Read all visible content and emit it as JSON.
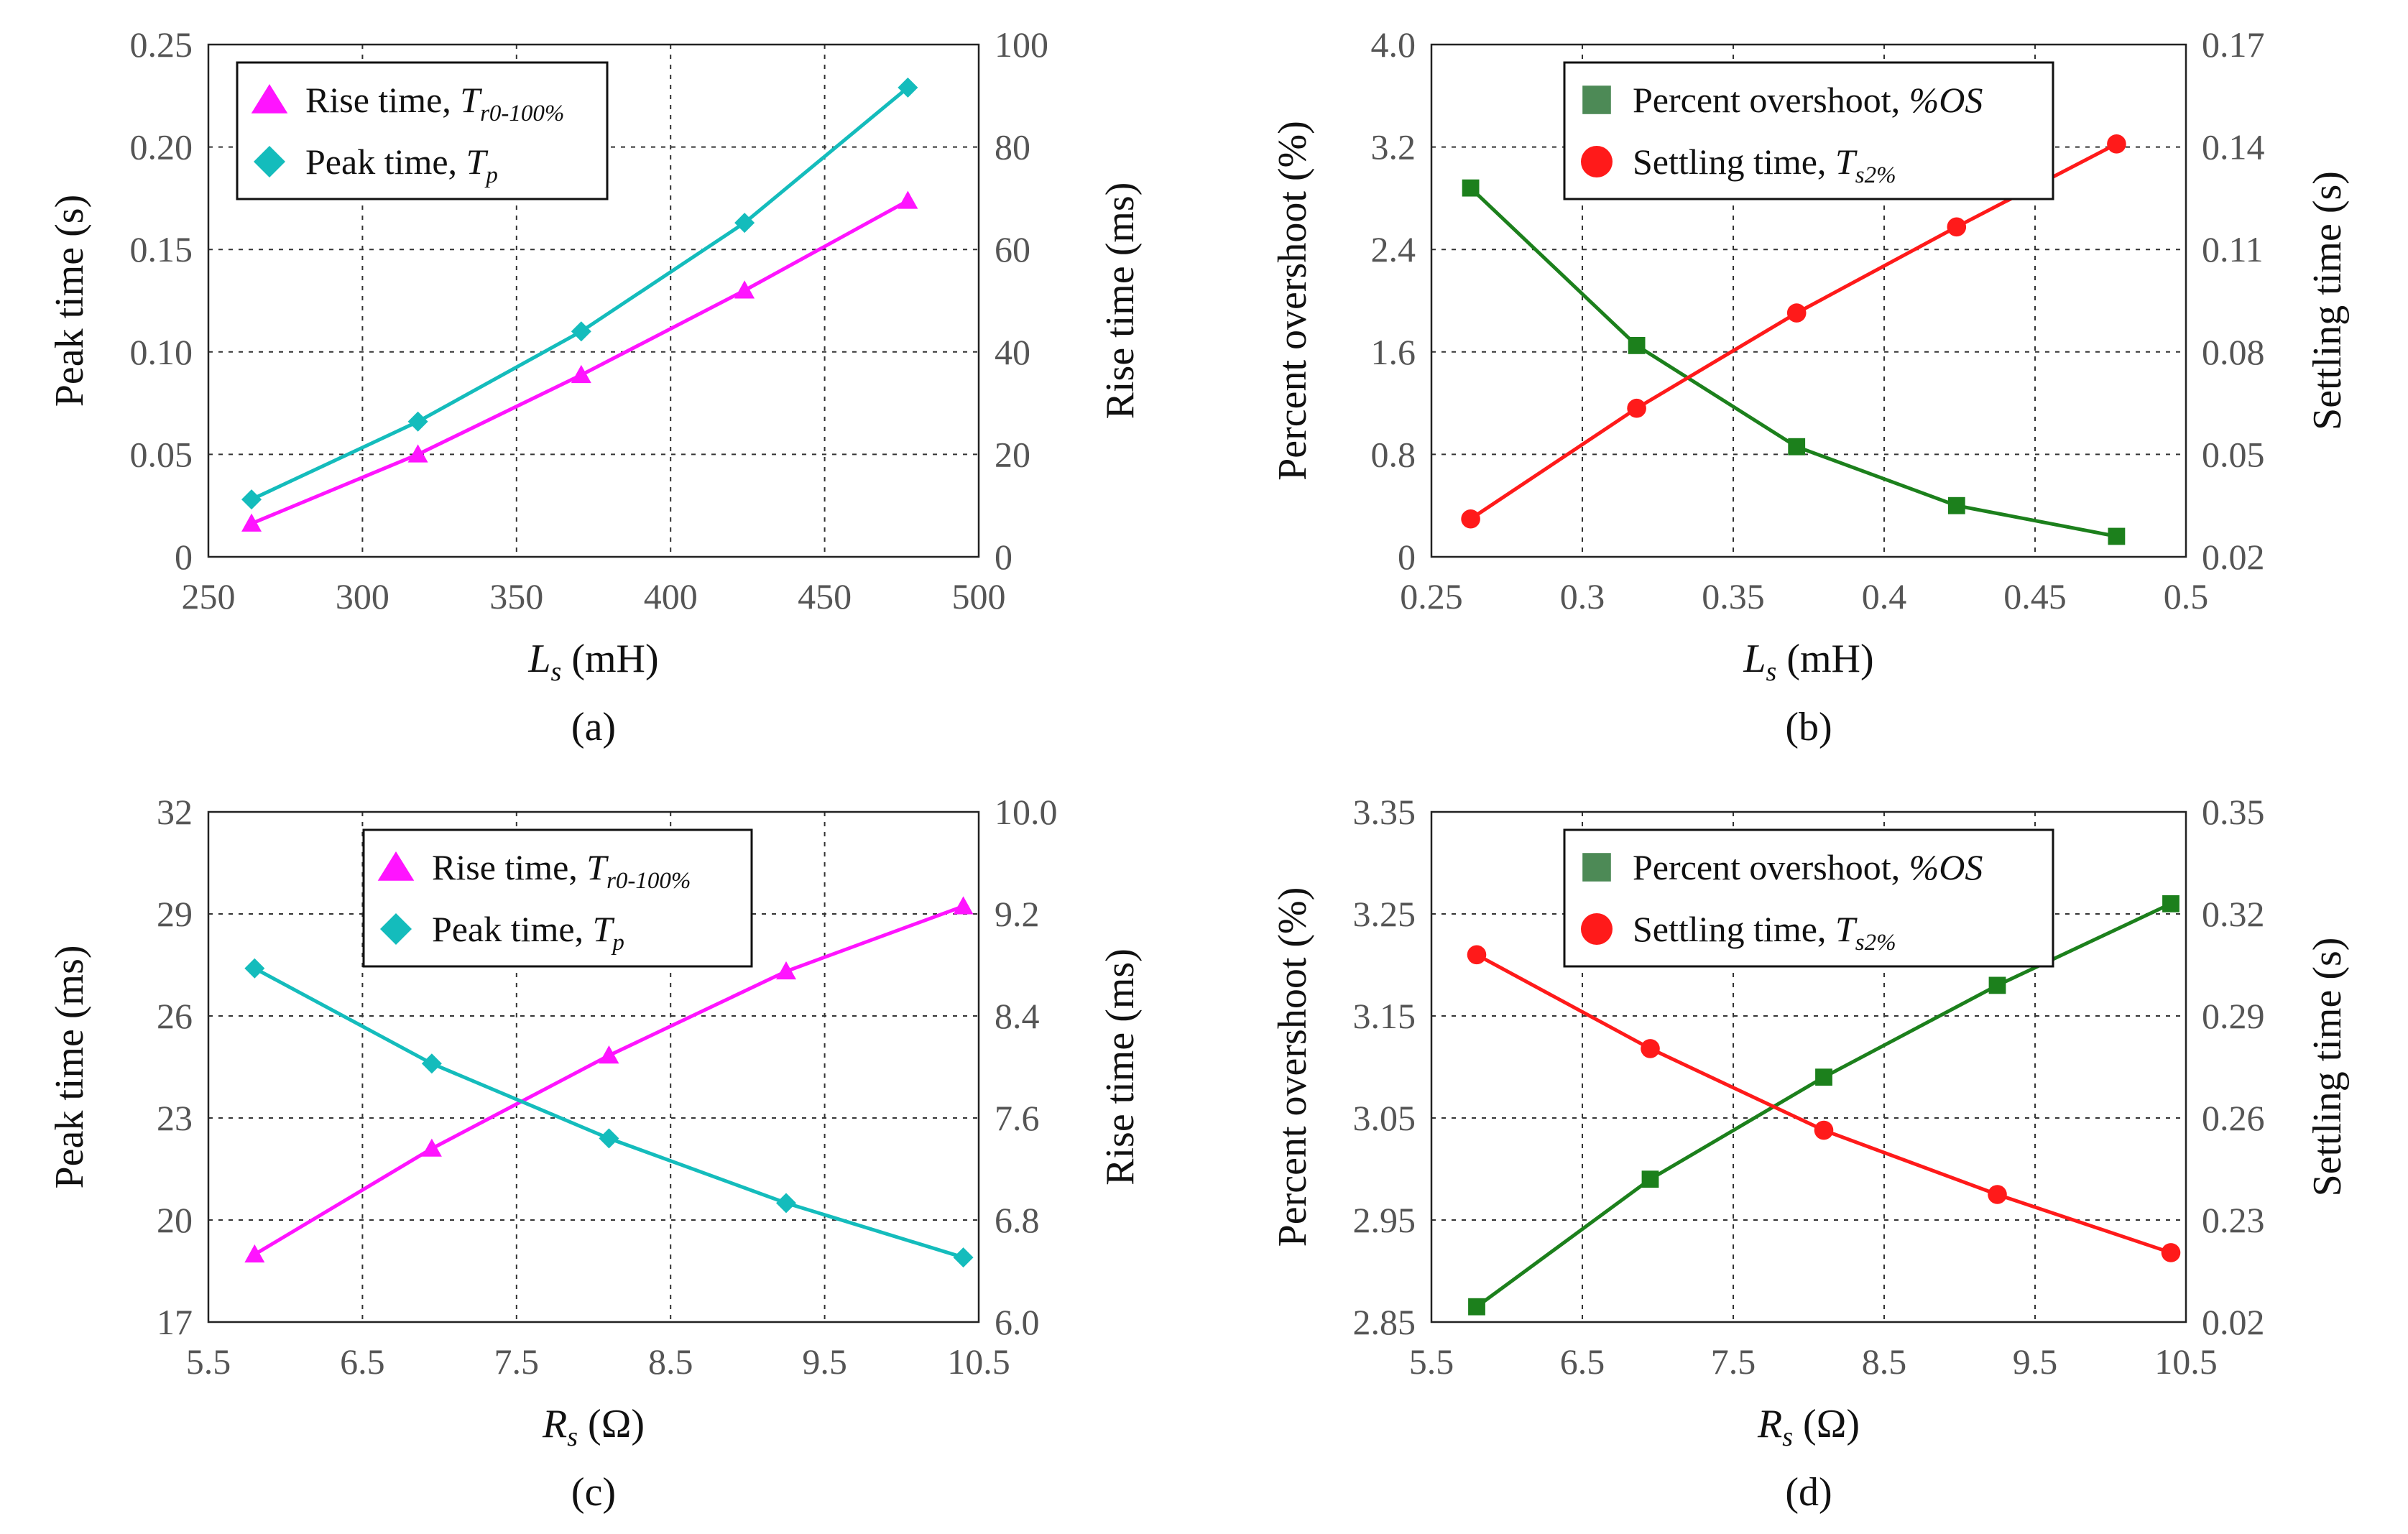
{
  "colors": {
    "magenta": "#ff14ff",
    "cyan": "#14bcbc",
    "green": "#1c801c",
    "red": "#ff1a1a",
    "legend_green": "#4d8a56"
  },
  "chart_data": [
    {
      "id": "a",
      "type": "line",
      "caption": "(a)",
      "xlabel_main": "L",
      "xlabel_sub": "s",
      "xlabel_unit": " (mH)",
      "ylabel_left": "Peak time (s)",
      "ylabel_right": "Rise time (ms)",
      "xlim": [
        250,
        500
      ],
      "xticks": [
        250,
        300,
        350,
        400,
        450,
        500
      ],
      "xtick_labels": [
        "250",
        "300",
        "350",
        "400",
        "450",
        "500"
      ],
      "ylim_left": [
        0,
        0.25
      ],
      "yticks_left": [
        0,
        0.05,
        0.1,
        0.15,
        0.2,
        0.25
      ],
      "ytick_labels_left": [
        "0",
        "0.05",
        "0.10",
        "0.15",
        "0.20",
        "0.25"
      ],
      "ylim_right": [
        0,
        100
      ],
      "yticks_right": [
        0,
        20,
        40,
        60,
        80,
        100
      ],
      "ytick_labels_right": [
        "0",
        "20",
        "40",
        "60",
        "80",
        "100"
      ],
      "legend_position": "top-left",
      "series": [
        {
          "name": "Rise time, ",
          "sym": "T",
          "sub": "r0-100%",
          "axis": "right",
          "color": "#ff14ff",
          "marker": "triangle",
          "x": [
            264,
            318,
            371,
            424,
            477
          ],
          "values": [
            6.5,
            20.0,
            35.5,
            52.0,
            69.5
          ]
        },
        {
          "name": "Peak time, ",
          "sym": "T",
          "sub": "p",
          "axis": "left",
          "color": "#14bcbc",
          "marker": "diamond",
          "x": [
            264,
            318,
            371,
            424,
            477
          ],
          "values": [
            0.028,
            0.066,
            0.11,
            0.163,
            0.229
          ]
        }
      ]
    },
    {
      "id": "b",
      "type": "line",
      "caption": "(b)",
      "xlabel_main": "L",
      "xlabel_sub": "s",
      "xlabel_unit": " (mH)",
      "ylabel_left": "Percent overshoot (%)",
      "ylabel_right": "Settling time (s)",
      "xlim": [
        0.25,
        0.5
      ],
      "xticks": [
        0.25,
        0.3,
        0.35,
        0.4,
        0.45,
        0.5
      ],
      "xtick_labels": [
        "0.25",
        "0.3",
        "0.35",
        "0.4",
        "0.45",
        "0.5"
      ],
      "ylim_left": [
        0,
        4.0
      ],
      "yticks_left": [
        0,
        0.8,
        1.6,
        2.4,
        3.2,
        4.0
      ],
      "ytick_labels_left": [
        "0",
        "0.8",
        "1.6",
        "2.4",
        "3.2",
        "4.0"
      ],
      "ylim_right": [
        0,
        5
      ],
      "yticks_right": [
        0,
        1,
        2,
        3,
        4,
        5
      ],
      "ytick_labels_right": [
        "0.02",
        "0.05",
        "0.08",
        "0.11",
        "0.14",
        "0.17"
      ],
      "legend_position": "top-center",
      "series": [
        {
          "name": "Percent overshoot, ",
          "sym": "%OS",
          "sub": "",
          "axis": "left",
          "color": "#1c801c",
          "legend_color": "#4d8a56",
          "marker": "square",
          "x": [
            0.263,
            0.318,
            0.371,
            0.424,
            0.477
          ],
          "values": [
            2.88,
            1.65,
            0.86,
            0.4,
            0.16
          ]
        },
        {
          "name": "Settling time, ",
          "sym": "T",
          "sub": "s2%",
          "axis": "right",
          "color": "#ff1a1a",
          "marker": "circle",
          "x": [
            0.263,
            0.318,
            0.371,
            0.424,
            0.477
          ],
          "values": [
            0.37,
            1.45,
            2.38,
            3.22,
            4.03
          ]
        }
      ]
    },
    {
      "id": "c",
      "type": "line",
      "caption": "(c)",
      "xlabel_main": "R",
      "xlabel_sub": "s",
      "xlabel_unit": " (Ω)",
      "ylabel_left": "Peak time (ms)",
      "ylabel_right": "Rise time (ms)",
      "xlim": [
        5.5,
        10.5
      ],
      "xticks": [
        5.5,
        6.5,
        7.5,
        8.5,
        9.5,
        10.5
      ],
      "xtick_labels": [
        "5.5",
        "6.5",
        "7.5",
        "8.5",
        "9.5",
        "10.5"
      ],
      "ylim_left": [
        17,
        32
      ],
      "yticks_left": [
        17,
        20,
        23,
        26,
        29,
        32
      ],
      "ytick_labels_left": [
        "17",
        "20",
        "23",
        "26",
        "29",
        "32"
      ],
      "ylim_right": [
        6.0,
        10.0
      ],
      "yticks_right": [
        6.0,
        6.8,
        7.6,
        8.4,
        9.2,
        10.0
      ],
      "ytick_labels_right": [
        "6.0",
        "6.8",
        "7.6",
        "8.4",
        "9.2",
        "10.0"
      ],
      "legend_position": "top-center",
      "series": [
        {
          "name": "Rise time, ",
          "sym": "T",
          "sub": "r0-100%",
          "axis": "right",
          "color": "#ff14ff",
          "marker": "triangle",
          "x": [
            5.8,
            6.95,
            8.1,
            9.25,
            10.4
          ],
          "values": [
            6.53,
            7.36,
            8.09,
            8.75,
            9.26
          ]
        },
        {
          "name": "Peak time, ",
          "sym": "T",
          "sub": "p",
          "axis": "left",
          "color": "#14bcbc",
          "marker": "diamond",
          "x": [
            5.8,
            6.95,
            8.1,
            9.25,
            10.4
          ],
          "values": [
            27.4,
            24.6,
            22.4,
            20.5,
            18.9
          ]
        }
      ]
    },
    {
      "id": "d",
      "type": "line",
      "caption": "(d)",
      "xlabel_main": "R",
      "xlabel_sub": "s",
      "xlabel_unit": " (Ω)",
      "ylabel_left": "Percent overshoot (%)",
      "ylabel_right": "Settling time (s)",
      "xlim": [
        5.5,
        10.5
      ],
      "xticks": [
        5.5,
        6.5,
        7.5,
        8.5,
        9.5,
        10.5
      ],
      "xtick_labels": [
        "5.5",
        "6.5",
        "7.5",
        "8.5",
        "9.5",
        "10.5"
      ],
      "ylim_left": [
        2.85,
        3.35
      ],
      "yticks_left": [
        2.85,
        2.95,
        3.05,
        3.15,
        3.25,
        3.35
      ],
      "ytick_labels_left": [
        "2.85",
        "2.95",
        "3.05",
        "3.15",
        "3.25",
        "3.35"
      ],
      "ylim_right": [
        0,
        5
      ],
      "yticks_right": [
        0,
        1,
        2,
        3,
        4,
        5
      ],
      "ytick_labels_right": [
        "0.02",
        "0.23",
        "0.26",
        "0.29",
        "0.32",
        "0.35"
      ],
      "legend_position": "top-center",
      "series": [
        {
          "name": "Percent overshoot, ",
          "sym": "%OS",
          "sub": "",
          "axis": "left",
          "color": "#1c801c",
          "legend_color": "#4d8a56",
          "marker": "square",
          "x": [
            5.8,
            6.95,
            8.1,
            9.25,
            10.4
          ],
          "values": [
            2.865,
            2.99,
            3.09,
            3.18,
            3.26
          ]
        },
        {
          "name": "Settling time, ",
          "sym": "T",
          "sub": "s2%",
          "axis": "right",
          "color": "#ff1a1a",
          "marker": "circle",
          "x": [
            5.8,
            6.95,
            8.1,
            9.25,
            10.4
          ],
          "values": [
            3.6,
            2.68,
            1.88,
            1.25,
            0.68
          ]
        }
      ]
    }
  ]
}
